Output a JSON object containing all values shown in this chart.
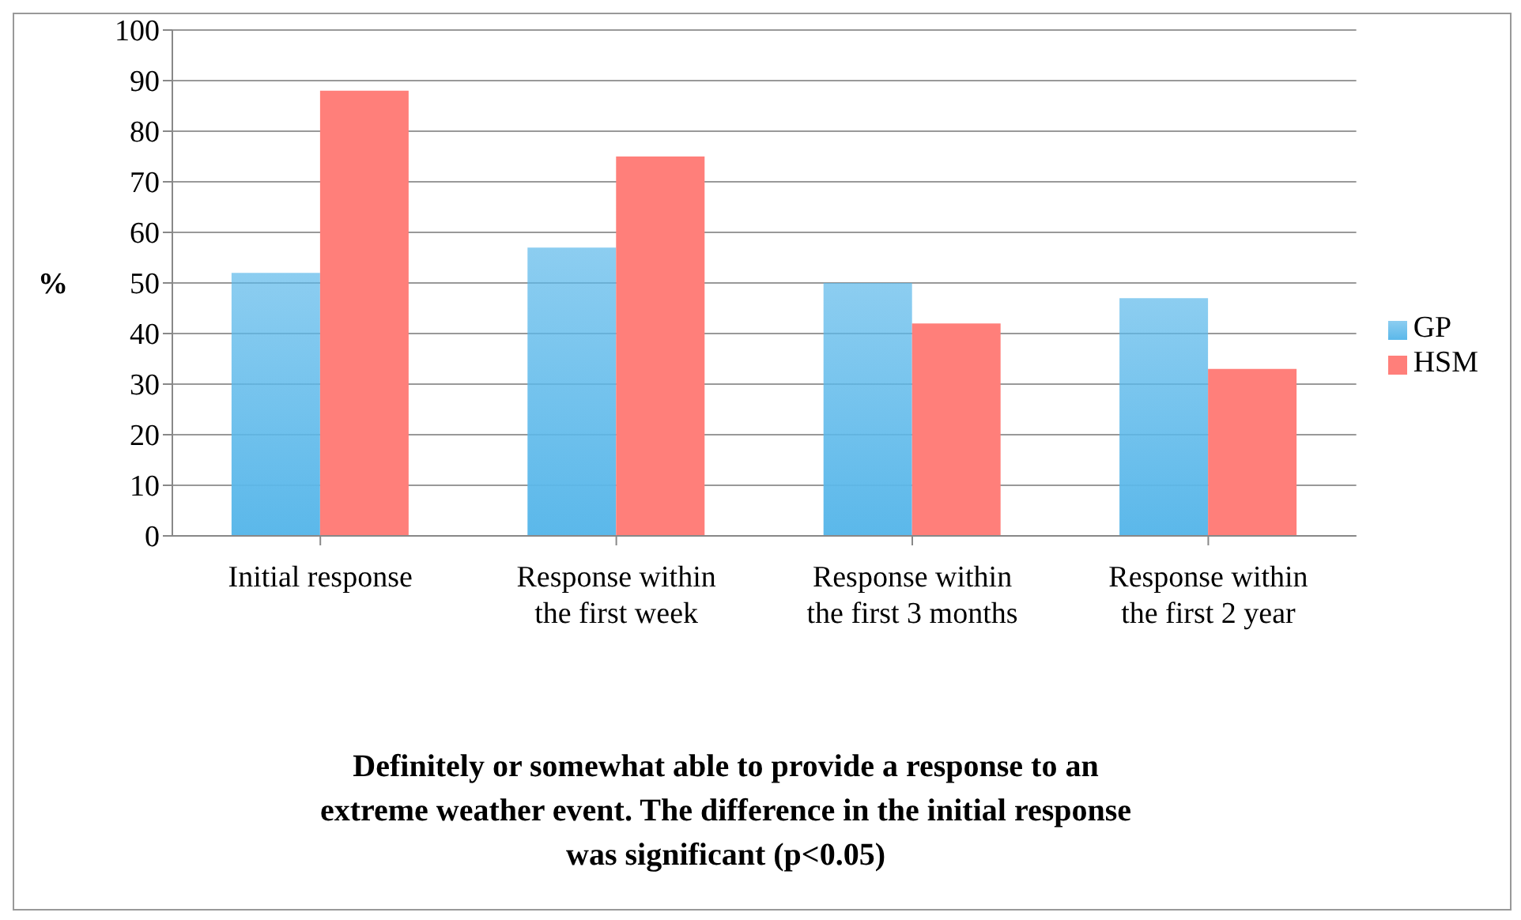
{
  "chart_data": {
    "type": "bar",
    "categories": [
      "Initial response",
      "Response within the first week",
      "Response within the first 3 months",
      "Response within the first 2 year"
    ],
    "series": [
      {
        "name": "GP",
        "color": "#5bb8ea",
        "values": [
          52,
          57,
          50,
          47
        ]
      },
      {
        "name": "HSM",
        "color": "#ff7f7a",
        "values": [
          88,
          75,
          42,
          33
        ]
      }
    ],
    "ylabel": "%",
    "xlabel": "Definitely or somewhat able to provide a response to an extreme weather event. The difference in the initial response was significant (p<0.05)",
    "ylim": [
      0,
      100
    ],
    "yticks": [
      0,
      10,
      20,
      30,
      40,
      50,
      60,
      70,
      80,
      90,
      100
    ],
    "grid": "y",
    "legend": "right"
  }
}
